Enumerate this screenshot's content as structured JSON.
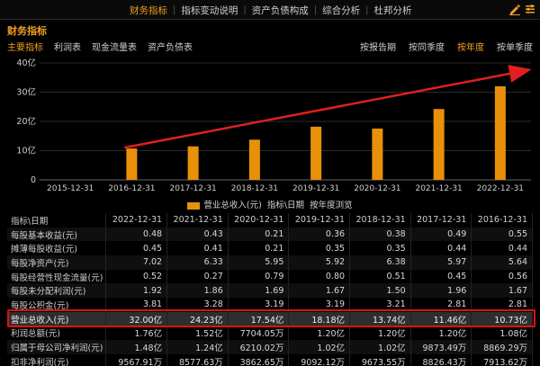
{
  "topnav": {
    "tabs": [
      {
        "label": "财务指标",
        "active": true
      },
      {
        "label": "指标变动说明",
        "active": false
      },
      {
        "label": "资产负债构成",
        "active": false
      },
      {
        "label": "综合分析",
        "active": false
      },
      {
        "label": "杜邦分析",
        "active": false
      }
    ]
  },
  "section_title": "财务指标",
  "subnav": {
    "left": [
      {
        "label": "主要指标",
        "active": true
      },
      {
        "label": "利润表",
        "active": false
      },
      {
        "label": "现金流量表",
        "active": false
      },
      {
        "label": "资产负债表",
        "active": false
      }
    ],
    "right": [
      {
        "label": "按报告期",
        "active": false
      },
      {
        "label": "按同季度",
        "active": false
      },
      {
        "label": "按年度",
        "active": true
      },
      {
        "label": "按单季度",
        "active": false
      }
    ]
  },
  "chart_data": {
    "type": "bar",
    "categories": [
      "2015-12-31",
      "2016-12-31",
      "2017-12-31",
      "2018-12-31",
      "2019-12-31",
      "2020-12-31",
      "2021-12-31",
      "2022-12-31"
    ],
    "series": [
      {
        "name": "营业总收入(元)",
        "values": [
          0,
          10.73,
          11.46,
          13.74,
          18.18,
          17.54,
          24.23,
          32.0
        ]
      }
    ],
    "yticks": [
      "0",
      "10亿",
      "20亿",
      "30亿",
      "40亿"
    ],
    "ylim": [
      0,
      40
    ],
    "color": "#e8900a",
    "grid": true,
    "annotation": "red arrow showing upward trend"
  },
  "legend": {
    "series_label": "营业总收入(元)",
    "text2": "指标\\日期",
    "text3": "按年度浏览"
  },
  "table": {
    "header": [
      "指标\\日期",
      "2022-12-31",
      "2021-12-31",
      "2020-12-31",
      "2019-12-31",
      "2018-12-31",
      "2017-12-31",
      "2016-12-31"
    ],
    "rows": [
      {
        "name": "每股基本收益(元)",
        "values": [
          "0.48",
          "0.43",
          "0.21",
          "0.36",
          "0.38",
          "0.49",
          "0.55"
        ]
      },
      {
        "name": "摊薄每股收益(元)",
        "values": [
          "0.45",
          "0.41",
          "0.21",
          "0.35",
          "0.35",
          "0.44",
          "0.44"
        ]
      },
      {
        "name": "每股净资产(元)",
        "values": [
          "7.02",
          "6.33",
          "5.95",
          "5.92",
          "6.38",
          "5.97",
          "5.64"
        ]
      },
      {
        "name": "每股经营性现金流量(元)",
        "values": [
          "0.52",
          "0.27",
          "0.79",
          "0.80",
          "0.51",
          "0.45",
          "0.56"
        ]
      },
      {
        "name": "每股未分配利润(元)",
        "values": [
          "1.92",
          "1.86",
          "1.69",
          "1.67",
          "1.50",
          "1.96",
          "1.67"
        ]
      },
      {
        "name": "每股公积金(元)",
        "values": [
          "3.81",
          "3.28",
          "3.19",
          "3.19",
          "3.21",
          "2.81",
          "2.81"
        ]
      },
      {
        "name": "营业总收入(元)",
        "values": [
          "32.00亿",
          "24.23亿",
          "17.54亿",
          "18.18亿",
          "13.74亿",
          "11.46亿",
          "10.73亿"
        ],
        "highlight": true
      },
      {
        "name": "利润总额(元)",
        "values": [
          "1.76亿",
          "1.52亿",
          "7704.05万",
          "1.20亿",
          "1.20亿",
          "1.20亿",
          "1.08亿"
        ]
      },
      {
        "name": "归属于母公司净利润(元)",
        "values": [
          "1.48亿",
          "1.24亿",
          "6210.02万",
          "1.02亿",
          "1.02亿",
          "9873.49万",
          "8869.29万"
        ]
      },
      {
        "name": "扣非净利润(元)",
        "values": [
          "9567.91万",
          "8577.63万",
          "3862.65万",
          "9092.12万",
          "9673.55万",
          "8826.43万",
          "7913.62万"
        ]
      }
    ]
  }
}
